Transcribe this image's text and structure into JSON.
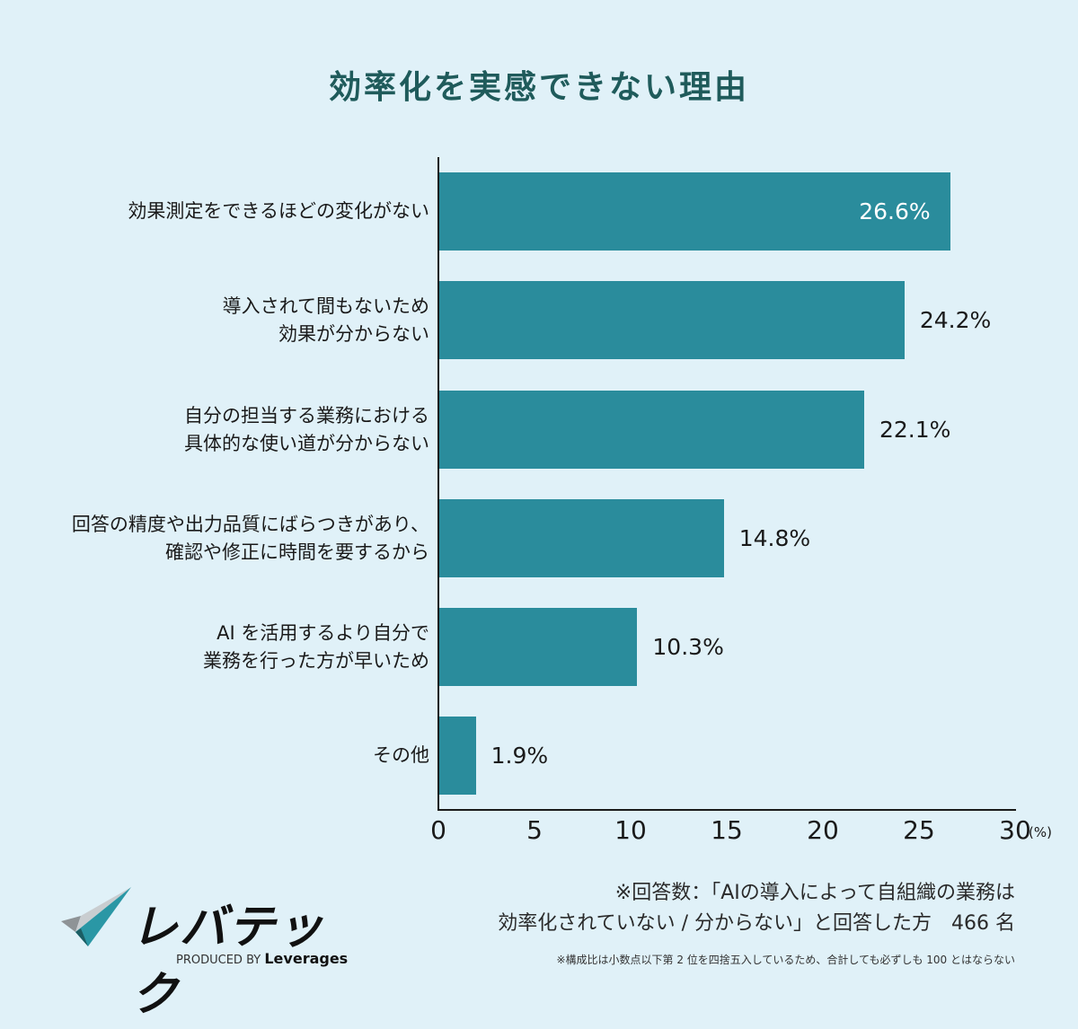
{
  "title": "効率化を実感できない理由",
  "colors": {
    "bar": "#2a8c9c",
    "background": "#e0f1f8",
    "title": "#1f5b5b"
  },
  "chart_data": {
    "type": "bar",
    "orientation": "horizontal",
    "title": "効率化を実感できない理由",
    "categories": [
      "効果測定をできるほどの変化がない",
      "導入されて間もないため効果が分からない",
      "自分の担当する業務における具体的な使い道が分からない",
      "回答の精度や出力品質にばらつきがあり、確認や修正に時間を要するから",
      "AI を活用するより自分で業務を行った方が早いため",
      "その他"
    ],
    "values": [
      26.6,
      24.2,
      22.1,
      14.8,
      10.3,
      1.9
    ],
    "xlabel": "(%)",
    "ylabel": "",
    "xlim": [
      0,
      30
    ],
    "xticks": [
      0,
      5,
      10,
      15,
      20,
      25,
      30
    ],
    "grid": false,
    "legend": null
  },
  "rows": [
    {
      "lines": [
        "効果測定をできるほどの変化がない"
      ],
      "value": 26.6,
      "label": "26.6%",
      "inside": true
    },
    {
      "lines": [
        "導入されて間もないため",
        "効果が分からない"
      ],
      "value": 24.2,
      "label": "24.2%",
      "inside": false
    },
    {
      "lines": [
        "自分の担当する業務における",
        "具体的な使い道が分からない"
      ],
      "value": 22.1,
      "label": "22.1%",
      "inside": false
    },
    {
      "lines": [
        "回答の精度や出力品質にばらつきがあり、",
        "確認や修正に時間を要するから"
      ],
      "value": 14.8,
      "label": "14.8%",
      "inside": false
    },
    {
      "lines": [
        "AI を活用するより自分で",
        "業務を行った方が早いため"
      ],
      "value": 10.3,
      "label": "10.3%",
      "inside": false
    },
    {
      "lines": [
        "その他"
      ],
      "value": 1.9,
      "label": "1.9%",
      "inside": false
    }
  ],
  "axis": {
    "ticks": [
      "0",
      "5",
      "10",
      "15",
      "20",
      "25",
      "30"
    ],
    "unit": "(%)"
  },
  "notes": {
    "line1": "※回答数：「AIの導入によって自組織の業務は",
    "line2": "効率化されていない / 分からない」と回答した方　466 名",
    "small": "※構成比は小数点以下第 2 位を四捨五入しているため、合計しても必ずしも 100 とはならない"
  },
  "logo": {
    "name": "レバテック",
    "produced_by": "PRODUCED BY",
    "company": "Leverages"
  }
}
